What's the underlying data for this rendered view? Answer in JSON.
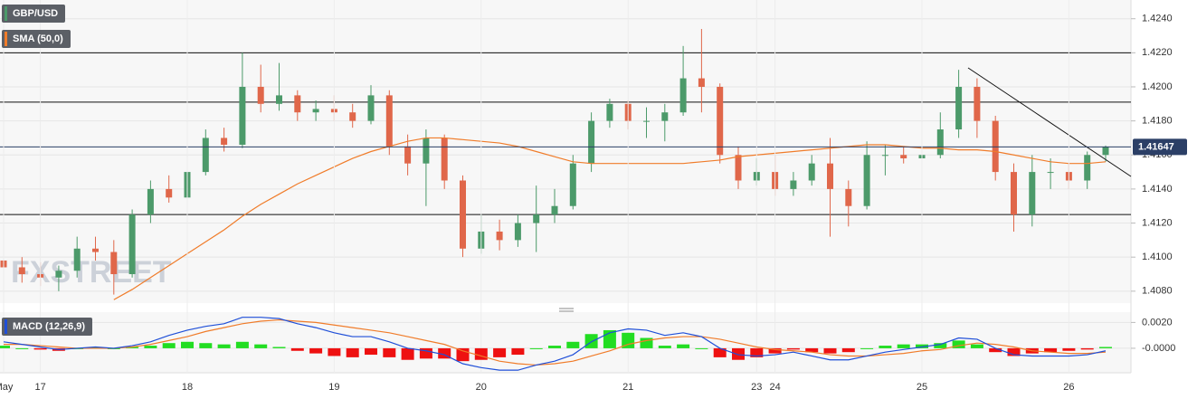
{
  "chart_data": [
    {
      "type": "candlestick",
      "name": "GBP/USD",
      "color_up": "#4c9a6a",
      "color_down": "#e0674a",
      "open": [
        1.4098,
        1.4094,
        1.409,
        1.4088,
        1.4092,
        1.4105,
        1.4103,
        1.409,
        1.4125,
        1.414,
        1.4135,
        1.415,
        1.417,
        1.4166,
        1.42,
        1.419,
        1.4195,
        1.4185,
        1.4187,
        1.4185,
        1.418,
        1.4195,
        1.4165,
        1.4155,
        1.417,
        1.4145,
        1.4105,
        1.4115,
        1.411,
        1.412,
        1.4125,
        1.413,
        1.4155,
        1.418,
        1.419,
        1.418,
        1.418,
        1.4185,
        1.4205,
        1.42,
        1.416,
        1.4145,
        1.415,
        1.414,
        1.4145,
        1.4155,
        1.414,
        1.413,
        1.416,
        1.416,
        1.4158,
        1.416,
        1.4175,
        1.42,
        1.418,
        1.415,
        1.4125,
        1.415,
        1.415,
        1.4145,
        1.416
      ],
      "high": [
        1.4105,
        1.41,
        1.4097,
        1.4095,
        1.4112,
        1.4112,
        1.411,
        1.4128,
        1.4145,
        1.4148,
        1.4155,
        1.4175,
        1.4176,
        1.422,
        1.4213,
        1.4214,
        1.4198,
        1.4192,
        1.4195,
        1.419,
        1.4201,
        1.4198,
        1.4172,
        1.4175,
        1.4172,
        1.4148,
        1.4125,
        1.4122,
        1.4125,
        1.4142,
        1.414,
        1.416,
        1.4185,
        1.4193,
        1.4192,
        1.4188,
        1.419,
        1.4224,
        1.4234,
        1.4202,
        1.4165,
        1.4158,
        1.416,
        1.415,
        1.416,
        1.417,
        1.4145,
        1.4168,
        1.4166,
        1.4165,
        1.417,
        1.4185,
        1.421,
        1.4205,
        1.4183,
        1.4155,
        1.416,
        1.4158,
        1.4155,
        1.4162,
        1.41655
      ],
      "low": [
        1.409,
        1.4085,
        1.4083,
        1.408,
        1.4088,
        1.4098,
        1.4078,
        1.4088,
        1.412,
        1.4132,
        1.4133,
        1.4148,
        1.4162,
        1.4164,
        1.4185,
        1.4186,
        1.418,
        1.418,
        1.418,
        1.4176,
        1.4178,
        1.416,
        1.4148,
        1.413,
        1.414,
        1.41,
        1.4102,
        1.4104,
        1.4106,
        1.4103,
        1.412,
        1.4128,
        1.415,
        1.4176,
        1.4175,
        1.417,
        1.4168,
        1.4183,
        1.4185,
        1.4155,
        1.414,
        1.4142,
        1.4136,
        1.4136,
        1.4142,
        1.4112,
        1.4118,
        1.4128,
        1.4148,
        1.4155,
        1.4152,
        1.4158,
        1.417,
        1.417,
        1.4145,
        1.4115,
        1.4118,
        1.414,
        1.414,
        1.414,
        1.4156
      ],
      "close": [
        1.4094,
        1.409,
        1.4088,
        1.4092,
        1.4105,
        1.4103,
        1.409,
        1.4125,
        1.414,
        1.4135,
        1.415,
        1.417,
        1.4166,
        1.42,
        1.419,
        1.4195,
        1.4185,
        1.4187,
        1.4185,
        1.418,
        1.4195,
        1.4165,
        1.4155,
        1.417,
        1.4145,
        1.4105,
        1.4115,
        1.411,
        1.412,
        1.4125,
        1.413,
        1.4155,
        1.418,
        1.419,
        1.418,
        1.418,
        1.4185,
        1.4205,
        1.42,
        1.416,
        1.4145,
        1.415,
        1.414,
        1.4145,
        1.4155,
        1.414,
        1.413,
        1.416,
        1.416,
        1.4158,
        1.416,
        1.4175,
        1.42,
        1.418,
        1.415,
        1.4125,
        1.415,
        1.415,
        1.4145,
        1.416,
        1.41647
      ],
      "overlays": [
        {
          "name": "SMA (50,0)",
          "color": "#f07c2a",
          "values": [
            null,
            null,
            null,
            null,
            null,
            null,
            1.4075,
            1.4081,
            1.4088,
            1.4095,
            1.4102,
            1.4109,
            1.4116,
            1.4124,
            1.4131,
            1.4137,
            1.4143,
            1.4148,
            1.4153,
            1.4158,
            1.4162,
            1.4165,
            1.4168,
            1.417,
            1.417,
            1.4169,
            1.4168,
            1.4167,
            1.4165,
            1.4162,
            1.4159,
            1.4156,
            1.4155,
            1.4155,
            1.4155,
            1.4155,
            1.4155,
            1.4155,
            1.4156,
            1.4157,
            1.4159,
            1.416,
            1.4161,
            1.4162,
            1.4163,
            1.4164,
            1.4165,
            1.4166,
            1.4166,
            1.4165,
            1.4164,
            1.4164,
            1.4163,
            1.4163,
            1.4162,
            1.416,
            1.4158,
            1.4156,
            1.4155,
            1.4155,
            1.4156
          ]
        }
      ],
      "levels": [
        1.422,
        1.4191,
        1.4125
      ],
      "last_price": 1.41647,
      "watermark": "FXSTREET",
      "ylim": [
        1.4073,
        1.4251
      ],
      "yticks": [
        {
          "value": 1.408,
          "label": "1.4080"
        },
        {
          "value": 1.41,
          "label": "1.4100"
        },
        {
          "value": 1.412,
          "label": "1.4120"
        },
        {
          "value": 1.414,
          "label": "1.4140"
        },
        {
          "value": 1.416,
          "label": "1.4160"
        },
        {
          "value": 1.418,
          "label": "1.4180"
        },
        {
          "value": 1.42,
          "label": "1.4200"
        },
        {
          "value": 1.422,
          "label": "1.4220"
        },
        {
          "value": 1.424,
          "label": "1.4240"
        }
      ]
    },
    {
      "type": "macd",
      "name": "MACD (12,26,9)",
      "categories": [
        "May",
        null,
        "17",
        null,
        null,
        null,
        null,
        null,
        null,
        null,
        "18",
        null,
        null,
        null,
        null,
        null,
        null,
        null,
        "19",
        null,
        null,
        null,
        null,
        null,
        null,
        null,
        "20",
        null,
        null,
        null,
        null,
        null,
        null,
        null,
        "21",
        null,
        null,
        null,
        null,
        null,
        null,
        "23",
        "24",
        null,
        null,
        null,
        null,
        null,
        null,
        null,
        "25",
        null,
        null,
        null,
        null,
        null,
        null,
        null,
        "26",
        null,
        null
      ],
      "macd": {
        "color": "#1f4fd8",
        "values": [
          0.0005,
          0.0003,
          0.0001,
          -0.0001,
          0.0,
          0.0001,
          0.0,
          0.0002,
          0.0005,
          0.001,
          0.0014,
          0.0017,
          0.0019,
          0.0024,
          0.0024,
          0.0023,
          0.0019,
          0.0016,
          0.0012,
          0.0009,
          0.0009,
          0.0005,
          0.0,
          -0.0002,
          -0.0005,
          -0.0012,
          -0.0015,
          -0.0017,
          -0.0017,
          -0.0013,
          -0.001,
          -0.0005,
          0.0005,
          0.0012,
          0.0015,
          0.0014,
          0.001,
          0.0012,
          0.0009,
          0.0,
          -0.0005,
          -0.0006,
          -0.0005,
          -0.0003,
          -0.0006,
          -0.0009,
          -0.0009,
          -0.0006,
          -0.0003,
          -0.0001,
          0.0001,
          0.0003,
          0.0008,
          0.0007,
          0.0,
          -0.0005,
          -0.0006,
          -0.0006,
          -0.0006,
          -0.0005,
          -0.0002
        ]
      },
      "signal": {
        "color": "#f07c2a",
        "values": [
          0.0003,
          0.0003,
          0.0002,
          0.0001,
          0.0,
          0.0,
          0.0,
          0.0001,
          0.0003,
          0.0006,
          0.0009,
          0.0013,
          0.0016,
          0.0019,
          0.0021,
          0.0022,
          0.0021,
          0.002,
          0.0018,
          0.0016,
          0.0014,
          0.0012,
          0.0009,
          0.0006,
          0.0003,
          -0.0002,
          -0.0006,
          -0.001,
          -0.0012,
          -0.0013,
          -0.0012,
          -0.001,
          -0.0006,
          -0.0002,
          0.0003,
          0.0006,
          0.0008,
          0.0009,
          0.0009,
          0.0007,
          0.0004,
          0.0001,
          -0.0001,
          -0.0002,
          -0.0003,
          -0.0005,
          -0.0006,
          -0.0006,
          -0.0005,
          -0.0004,
          -0.0002,
          -0.0001,
          0.0002,
          0.0004,
          0.0003,
          0.0001,
          -0.0002,
          -0.0003,
          -0.0004,
          -0.0004,
          -0.0003
        ]
      },
      "histogram": {
        "color_up": "#22dd22",
        "color_down": "#ee1111",
        "values": [
          0.0002,
          0,
          -0.0001,
          -0.0002,
          0,
          0.0001,
          0,
          0.0001,
          0.0002,
          0.0004,
          0.0005,
          0.0004,
          0.0003,
          0.0005,
          0.0003,
          0.0001,
          -0.0002,
          -0.0004,
          -0.0006,
          -0.0007,
          -0.0005,
          -0.0007,
          -0.0009,
          -0.0008,
          -0.0008,
          -0.001,
          -0.0009,
          -0.0007,
          -0.0005,
          0,
          0.0002,
          0.0005,
          0.0011,
          0.0014,
          0.0012,
          0.0008,
          0.0002,
          0.0003,
          0,
          -0.0007,
          -0.0009,
          -0.0007,
          -0.0004,
          -0.0001,
          -0.0003,
          -0.0004,
          -0.0003,
          0,
          0.0002,
          0.0003,
          0.0003,
          0.0004,
          0.0006,
          0.0003,
          -0.0003,
          -0.0006,
          -0.0004,
          -0.0003,
          -0.0002,
          -0.0001,
          0.0001
        ]
      },
      "ylim": [
        -0.0019,
        0.0028
      ],
      "yticks": [
        {
          "value": 0,
          "label": "-0.0000"
        },
        {
          "value": 0.002,
          "label": "0.0020"
        }
      ]
    }
  ]
}
